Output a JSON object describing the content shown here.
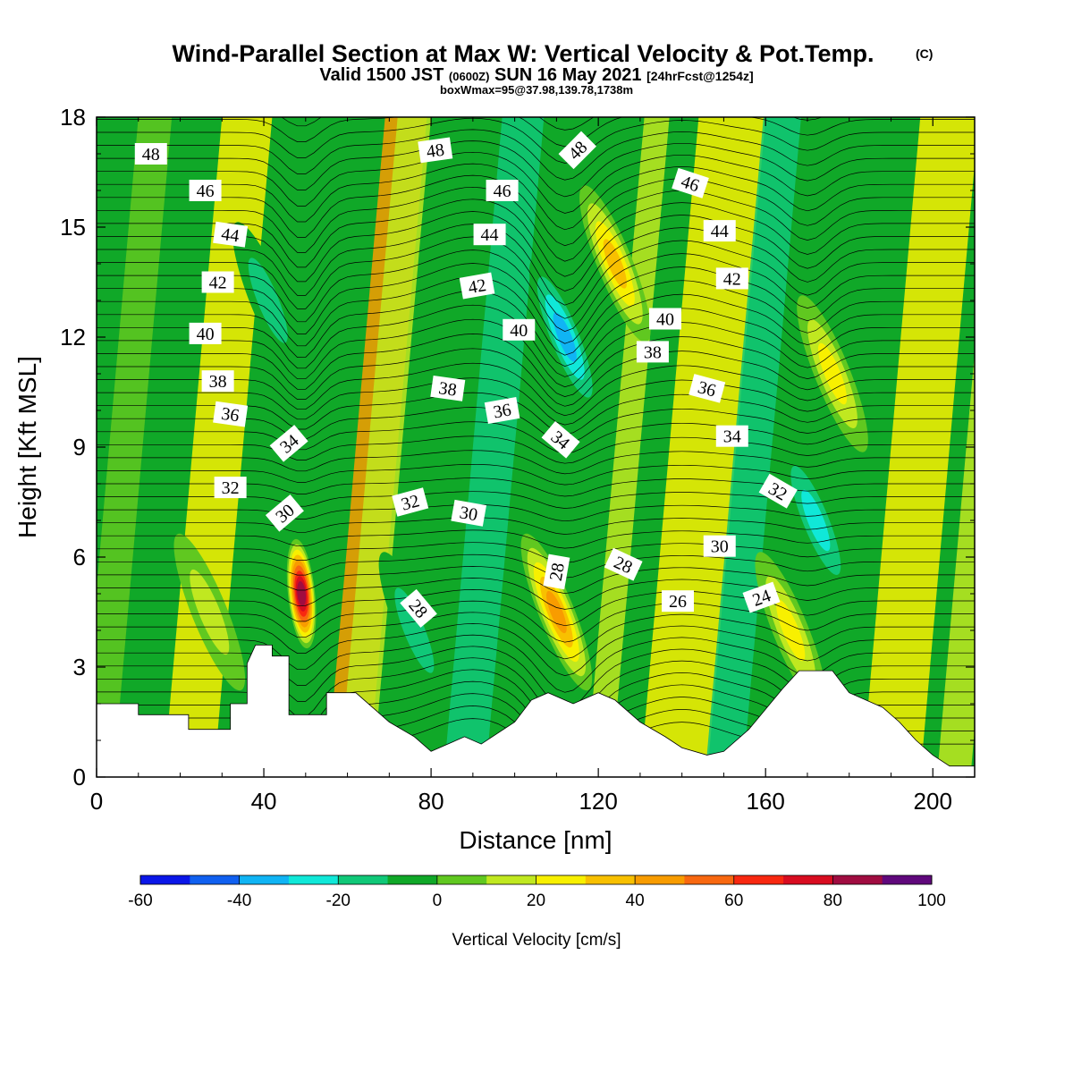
{
  "header": {
    "title": "Wind-Parallel Section at Max W: Vertical Velocity & Pot.Temp.",
    "copyright": "(C)",
    "valid_main": "Valid 1500 JST",
    "valid_z": "(0600Z)",
    "valid_date": "SUN 16 May 2021",
    "forecast": "[24hrFcst@1254z]",
    "box": "boxWmax=95@37.98,139.78,1738m"
  },
  "colorbar": {
    "label": "Vertical Velocity [cm/s]",
    "ticks": [
      "-60",
      "-40",
      "-20",
      "0",
      "20",
      "40",
      "60",
      "80",
      "100"
    ],
    "colors": [
      "#0a16e8",
      "#1060f0",
      "#10b4f4",
      "#10e8d8",
      "#10c878",
      "#10a828",
      "#60c820",
      "#c0e820",
      "#f8f000",
      "#f8c000",
      "#f89c00",
      "#f86810",
      "#f82810",
      "#d80c20",
      "#a00c40",
      "#60087c"
    ]
  },
  "chart_data": {
    "type": "heatmap",
    "title": "Wind-Parallel Section at Max W: Vertical Velocity & Pot.Temp.",
    "xlabel": "Distance [nm]",
    "ylabel": "Height [Kft MSL]",
    "xlim": [
      0,
      210
    ],
    "ylim": [
      0,
      18
    ],
    "xticks": [
      "0",
      "40",
      "80",
      "120",
      "160",
      "200"
    ],
    "yticks": [
      "0",
      "3",
      "6",
      "9",
      "12",
      "15",
      "18"
    ],
    "field": "vertical_velocity_cm_s",
    "features": [
      {
        "kind": "updraft",
        "x": 49,
        "y": 5.0,
        "w_peak": 95
      },
      {
        "kind": "updraft",
        "x": 110,
        "y": 4.5,
        "w_peak": 50
      },
      {
        "kind": "updraft",
        "x": 124,
        "y": 14,
        "w_peak": 40
      },
      {
        "kind": "updraft",
        "x": 176,
        "y": 11,
        "w_peak": 35
      },
      {
        "kind": "updraft",
        "x": 27,
        "y": 4.5,
        "w_peak": 25
      },
      {
        "kind": "updraft",
        "x": 166,
        "y": 4,
        "w_peak": 30
      },
      {
        "kind": "downdraft",
        "x": 112,
        "y": 12,
        "w_peak": -40
      },
      {
        "kind": "downdraft",
        "x": 172,
        "y": 7,
        "w_peak": -35
      },
      {
        "kind": "downdraft",
        "x": 41,
        "y": 13,
        "w_peak": -20
      },
      {
        "kind": "downdraft",
        "x": 76,
        "y": 4,
        "w_peak": -20
      }
    ],
    "terrain": [
      [
        0,
        2.0
      ],
      [
        10,
        2.0
      ],
      [
        10,
        1.7
      ],
      [
        22,
        1.7
      ],
      [
        22,
        1.3
      ],
      [
        32,
        1.3
      ],
      [
        32,
        2.0
      ],
      [
        36,
        2.0
      ],
      [
        36,
        3.1
      ],
      [
        38,
        3.6
      ],
      [
        42,
        3.6
      ],
      [
        42,
        3.3
      ],
      [
        46,
        3.3
      ],
      [
        46,
        1.7
      ],
      [
        55,
        1.7
      ],
      [
        55,
        2.3
      ],
      [
        62,
        2.3
      ],
      [
        70,
        1.5
      ],
      [
        76,
        1.1
      ],
      [
        80,
        0.7
      ],
      [
        88,
        1.1
      ],
      [
        92,
        0.9
      ],
      [
        100,
        1.5
      ],
      [
        104,
        2.1
      ],
      [
        108,
        2.3
      ],
      [
        114,
        2.0
      ],
      [
        120,
        2.3
      ],
      [
        124,
        2.1
      ],
      [
        130,
        1.5
      ],
      [
        136,
        1.1
      ],
      [
        140,
        0.8
      ],
      [
        146,
        0.6
      ],
      [
        150,
        0.7
      ],
      [
        156,
        1.3
      ],
      [
        164,
        2.4
      ],
      [
        168,
        2.9
      ],
      [
        176,
        2.9
      ],
      [
        180,
        2.3
      ],
      [
        188,
        1.9
      ],
      [
        192,
        1.5
      ],
      [
        196,
        1.0
      ],
      [
        200,
        0.6
      ],
      [
        204,
        0.3
      ],
      [
        210,
        0.3
      ]
    ],
    "isentropes": {
      "levels": [
        24,
        26,
        28,
        30,
        32,
        34,
        36,
        38,
        40,
        42,
        44,
        46,
        48
      ],
      "labels": [
        {
          "text": "48",
          "x": 13,
          "y": 17.0,
          "angle": 0
        },
        {
          "text": "46",
          "x": 26,
          "y": 16.0,
          "angle": 0
        },
        {
          "text": "44",
          "x": 32,
          "y": 14.8,
          "angle": 8
        },
        {
          "text": "42",
          "x": 29,
          "y": 13.5,
          "angle": 0
        },
        {
          "text": "40",
          "x": 26,
          "y": 12.1,
          "angle": 0
        },
        {
          "text": "38",
          "x": 29,
          "y": 10.8,
          "angle": 0
        },
        {
          "text": "36",
          "x": 32,
          "y": 9.9,
          "angle": 8
        },
        {
          "text": "34",
          "x": 46,
          "y": 9.1,
          "angle": -40
        },
        {
          "text": "32",
          "x": 32,
          "y": 7.9,
          "angle": 0
        },
        {
          "text": "30",
          "x": 45,
          "y": 7.2,
          "angle": -40
        },
        {
          "text": "48",
          "x": 81,
          "y": 17.1,
          "angle": -8
        },
        {
          "text": "46",
          "x": 97,
          "y": 16.0,
          "angle": 0
        },
        {
          "text": "44",
          "x": 94,
          "y": 14.8,
          "angle": 0
        },
        {
          "text": "42",
          "x": 91,
          "y": 13.4,
          "angle": -10
        },
        {
          "text": "40",
          "x": 101,
          "y": 12.2,
          "angle": 0
        },
        {
          "text": "38",
          "x": 84,
          "y": 10.6,
          "angle": 8
        },
        {
          "text": "36",
          "x": 97,
          "y": 10.0,
          "angle": -10
        },
        {
          "text": "32",
          "x": 75,
          "y": 7.5,
          "angle": -15
        },
        {
          "text": "30",
          "x": 89,
          "y": 7.2,
          "angle": 10
        },
        {
          "text": "28",
          "x": 77,
          "y": 4.6,
          "angle": 50
        },
        {
          "text": "48",
          "x": 115,
          "y": 17.1,
          "angle": -45
        },
        {
          "text": "46",
          "x": 142,
          "y": 16.2,
          "angle": 18
        },
        {
          "text": "44",
          "x": 149,
          "y": 14.9,
          "angle": 0
        },
        {
          "text": "42",
          "x": 152,
          "y": 13.6,
          "angle": 0
        },
        {
          "text": "40",
          "x": 136,
          "y": 12.5,
          "angle": 0
        },
        {
          "text": "38",
          "x": 133,
          "y": 11.6,
          "angle": 0
        },
        {
          "text": "36",
          "x": 146,
          "y": 10.6,
          "angle": 15
        },
        {
          "text": "34",
          "x": 111,
          "y": 9.2,
          "angle": 40
        },
        {
          "text": "34",
          "x": 152,
          "y": 9.3,
          "angle": 0
        },
        {
          "text": "32",
          "x": 163,
          "y": 7.8,
          "angle": 30
        },
        {
          "text": "28",
          "x": 110,
          "y": 5.6,
          "angle": -80
        },
        {
          "text": "28",
          "x": 126,
          "y": 5.8,
          "angle": 25
        },
        {
          "text": "30",
          "x": 149,
          "y": 6.3,
          "angle": 0
        },
        {
          "text": "26",
          "x": 139,
          "y": 4.8,
          "angle": 0
        },
        {
          "text": "24",
          "x": 159,
          "y": 4.9,
          "angle": -20
        }
      ]
    }
  }
}
